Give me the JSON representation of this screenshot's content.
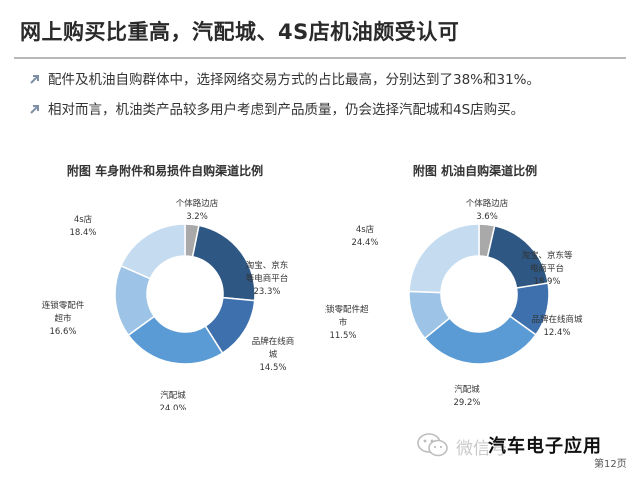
{
  "slide": {
    "title": "网上购买比重高，汽配城、4S店机油颇受认可",
    "bullets": [
      "配件及机油自购群体中，选择网络交易方式的占比最高，分别达到了38%和31%。",
      "相对而言，机油类产品较多用户考虑到产品质量，仍会选择汽配城和4S店购买。"
    ],
    "accent_color": "#5b7fa6"
  },
  "chart_data": [
    {
      "type": "pie",
      "donut": true,
      "title": "附图  车身附件和易损件自购渠道比例",
      "slices": [
        {
          "label": [
            "个体路边店"
          ],
          "value": 3.2,
          "value_label": "3.2%",
          "color": "#a9a9a9"
        },
        {
          "label": [
            "淘宝、京东",
            "等电商平台"
          ],
          "value": 23.3,
          "value_label": "23.3%",
          "color": "#2e5784"
        },
        {
          "label": [
            "品牌在线商",
            "城"
          ],
          "value": 14.5,
          "value_label": "14.5%",
          "color": "#3d70ad"
        },
        {
          "label": [
            "汽配城"
          ],
          "value": 24.0,
          "value_label": "24.0%",
          "color": "#5b9bd5"
        },
        {
          "label": [
            "连锁零配件",
            "超市"
          ],
          "value": 16.6,
          "value_label": "16.6%",
          "color": "#9dc3e6"
        },
        {
          "label": [
            "4s店"
          ],
          "value": 18.4,
          "value_label": "18.4%",
          "color": "#c5dcf0"
        }
      ]
    },
    {
      "type": "pie",
      "donut": true,
      "title": "附图  机油自购渠道比例",
      "slices": [
        {
          "label": [
            "个体路边店"
          ],
          "value": 3.6,
          "value_label": "3.6%",
          "color": "#a9a9a9"
        },
        {
          "label": [
            "淘宝、京东等",
            "电商平台"
          ],
          "value": 18.9,
          "value_label": "18.9%",
          "color": "#2e5784"
        },
        {
          "label": [
            "品牌在线商城"
          ],
          "value": 12.4,
          "value_label": "12.4%",
          "color": "#3d70ad"
        },
        {
          "label": [
            "汽配城"
          ],
          "value": 29.2,
          "value_label": "29.2%",
          "color": "#5b9bd5"
        },
        {
          "label": [
            "连锁零配件超",
            "市"
          ],
          "value": 11.5,
          "value_label": "11.5%",
          "color": "#9dc3e6"
        },
        {
          "label": [
            "4s店"
          ],
          "value": 24.4,
          "value_label": "24.4%",
          "color": "#c5dcf0"
        }
      ]
    }
  ],
  "watermark": {
    "text": "微信号",
    "icon": "wechat-icon"
  },
  "brand": "汽车电子应用",
  "page_label": "第12页"
}
